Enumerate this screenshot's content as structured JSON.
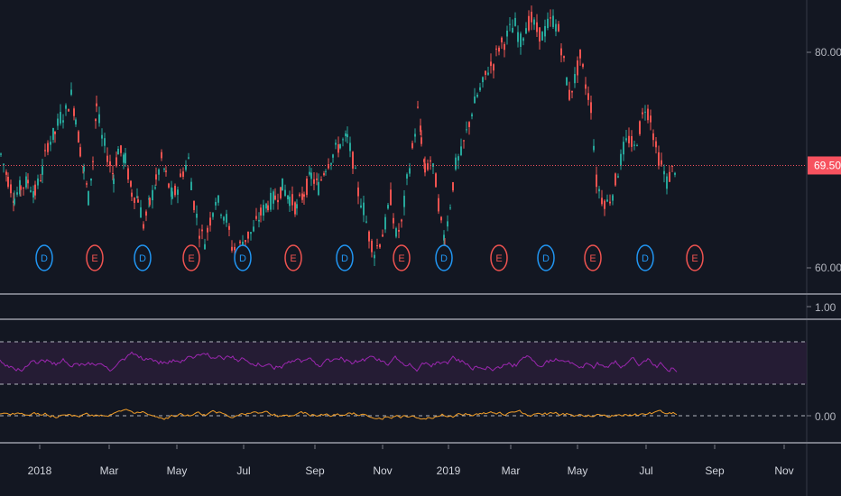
{
  "colors": {
    "background": "#131722",
    "up": "#26a69a",
    "down": "#ef5350",
    "grid_separator": "#787b86",
    "rsi_line": "#9c27b0",
    "rsi_band": "#2a1e3a",
    "osc_line": "#f09d28",
    "dividend": "#2196f3",
    "earnings": "#ef5350",
    "price_line": "#f7525f",
    "text": "#b2b5be"
  },
  "chart_data": {
    "type": "line",
    "panes": [
      {
        "name": "price",
        "y_ticks": [
          "80.00",
          "60.00"
        ],
        "ylim": [
          58,
          85
        ],
        "last_price_label": "69.50",
        "last_price": 69.5,
        "ohlc_close_path": [
          [
            0,
            70.5
          ],
          [
            8,
            68.2
          ],
          [
            15,
            66.5
          ],
          [
            22,
            67.5
          ],
          [
            30,
            68.0
          ],
          [
            38,
            67.0
          ],
          [
            46,
            69.0
          ],
          [
            52,
            71.5
          ],
          [
            60,
            72.5
          ],
          [
            66,
            74.0
          ],
          [
            72,
            74.5
          ],
          [
            78,
            76.0
          ],
          [
            83,
            74.0
          ],
          [
            88,
            71.0
          ],
          [
            92,
            69.0
          ],
          [
            97,
            66.5
          ],
          [
            102,
            70.0
          ],
          [
            106,
            75.0
          ],
          [
            112,
            72.0
          ],
          [
            118,
            70.5
          ],
          [
            125,
            68.5
          ],
          [
            130,
            71.0
          ],
          [
            138,
            70.0
          ],
          [
            145,
            67.0
          ],
          [
            152,
            66.5
          ],
          [
            158,
            64.0
          ],
          [
            165,
            66.0
          ],
          [
            172,
            68.0
          ],
          [
            178,
            70.0
          ],
          [
            183,
            68.5
          ],
          [
            190,
            66.5
          ],
          [
            196,
            67.5
          ],
          [
            202,
            69.0
          ],
          [
            208,
            70.0
          ],
          [
            214,
            66.0
          ],
          [
            220,
            63.5
          ],
          [
            226,
            62.5
          ],
          [
            232,
            64.5
          ],
          [
            238,
            66.5
          ],
          [
            244,
            65.5
          ],
          [
            250,
            64.5
          ],
          [
            256,
            62.0
          ],
          [
            262,
            61.5
          ],
          [
            268,
            62.5
          ],
          [
            274,
            63.0
          ],
          [
            280,
            63.5
          ],
          [
            288,
            65.0
          ],
          [
            296,
            66.0
          ],
          [
            304,
            66.5
          ],
          [
            312,
            67.5
          ],
          [
            320,
            66.5
          ],
          [
            328,
            65.5
          ],
          [
            336,
            67.0
          ],
          [
            344,
            68.5
          ],
          [
            352,
            67.5
          ],
          [
            360,
            69.5
          ],
          [
            368,
            70.5
          ],
          [
            376,
            71.5
          ],
          [
            384,
            72.0
          ],
          [
            390,
            70.0
          ],
          [
            396,
            67.0
          ],
          [
            402,
            65.5
          ],
          [
            408,
            63.0
          ],
          [
            414,
            61.5
          ],
          [
            420,
            62.5
          ],
          [
            426,
            64.0
          ],
          [
            432,
            66.5
          ],
          [
            438,
            63.0
          ],
          [
            444,
            64.0
          ],
          [
            450,
            68.0
          ],
          [
            456,
            71.0
          ],
          [
            462,
            74.5
          ],
          [
            466,
            72.0
          ],
          [
            470,
            69.0
          ],
          [
            476,
            70.0
          ],
          [
            482,
            68.0
          ],
          [
            488,
            64.0
          ],
          [
            492,
            62.5
          ],
          [
            498,
            66.0
          ],
          [
            504,
            69.5
          ],
          [
            510,
            70.5
          ],
          [
            516,
            72.5
          ],
          [
            522,
            74.5
          ],
          [
            528,
            76.0
          ],
          [
            534,
            77.0
          ],
          [
            540,
            78.5
          ],
          [
            546,
            79.0
          ],
          [
            552,
            80.5
          ],
          [
            558,
            81.0
          ],
          [
            564,
            82.0
          ],
          [
            570,
            82.5
          ],
          [
            576,
            81.0
          ],
          [
            582,
            82.5
          ],
          [
            588,
            83.0
          ],
          [
            594,
            82.0
          ],
          [
            600,
            81.5
          ],
          [
            606,
            82.5
          ],
          [
            612,
            83.0
          ],
          [
            618,
            82.0
          ],
          [
            624,
            79.0
          ],
          [
            630,
            76.0
          ],
          [
            636,
            77.5
          ],
          [
            642,
            79.5
          ],
          [
            648,
            77.0
          ],
          [
            654,
            75.0
          ],
          [
            660,
            68.0
          ],
          [
            666,
            66.5
          ],
          [
            672,
            66.0
          ],
          [
            678,
            67.0
          ],
          [
            684,
            69.0
          ],
          [
            690,
            71.0
          ],
          [
            696,
            72.0
          ],
          [
            702,
            71.0
          ],
          [
            708,
            73.0
          ],
          [
            714,
            75.0
          ],
          [
            720,
            74.0
          ],
          [
            726,
            71.0
          ],
          [
            732,
            69.5
          ],
          [
            738,
            68.0
          ],
          [
            744,
            69.0
          ],
          [
            750,
            69.5
          ]
        ],
        "events": [
          {
            "type": "D",
            "x_index": 0
          },
          {
            "type": "E",
            "x_index": 1
          },
          {
            "type": "D",
            "x_index": 2
          },
          {
            "type": "E",
            "x_index": 3
          },
          {
            "type": "D",
            "x_index": 4
          },
          {
            "type": "E",
            "x_index": 5
          },
          {
            "type": "D",
            "x_index": 6
          },
          {
            "type": "E",
            "x_index": 7
          },
          {
            "type": "D",
            "x_index": 8
          },
          {
            "type": "E",
            "x_index": 9
          },
          {
            "type": "D",
            "x_index": 10
          },
          {
            "type": "E",
            "x_index": 11
          },
          {
            "type": "D",
            "x_index": 12
          },
          {
            "type": "E",
            "x_index": 13
          }
        ]
      },
      {
        "name": "separator",
        "y_tick": "1.00"
      },
      {
        "name": "oscillator",
        "y_tick": "0.00",
        "rsi_band": [
          30,
          70
        ],
        "osc_zero": 0
      }
    ],
    "x_ticks": [
      "2018",
      "Mar",
      "May",
      "Jul",
      "Sep",
      "Nov",
      "2019",
      "Mar",
      "May",
      "Jul",
      "Sep",
      "Nov"
    ],
    "grid": false,
    "legend": "none"
  }
}
